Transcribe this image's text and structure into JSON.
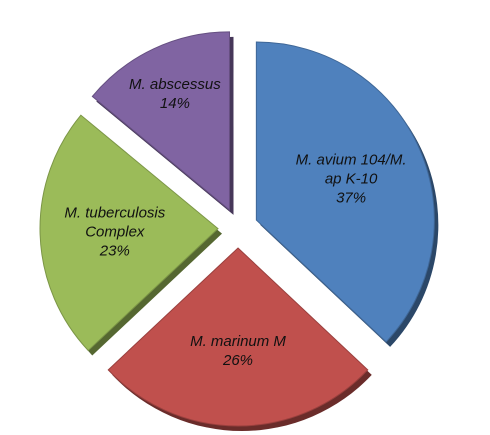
{
  "chart_data": {
    "type": "pie",
    "categories": [
      "M. avium 104/M. ap K-10",
      "M. marinum M",
      "M. tuberculosis Complex",
      "M. abscessus"
    ],
    "values": [
      37,
      26,
      23,
      14
    ],
    "value_labels": [
      "37%",
      "26%",
      "23%",
      "14%"
    ],
    "colors": [
      "#4f81bd",
      "#c0504d",
      "#9bbb59",
      "#8064a2"
    ]
  }
}
